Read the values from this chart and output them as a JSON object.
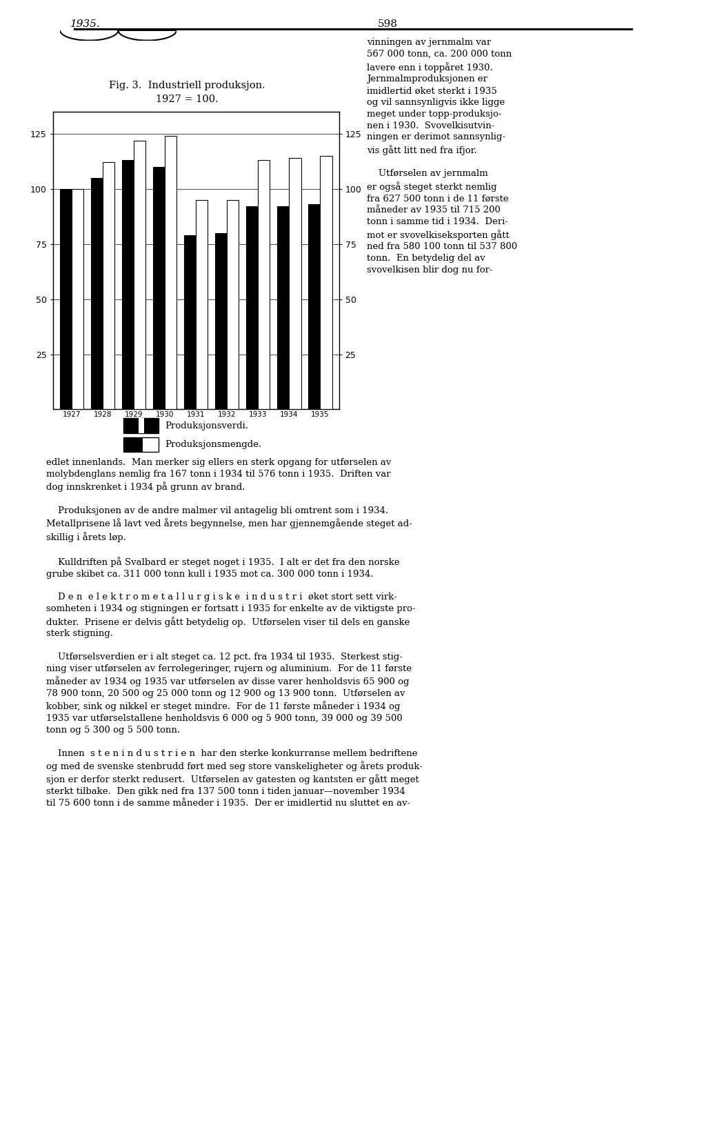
{
  "title_line1": "Fig. 3.  Industriell produksjon.",
  "title_line2": "1927 = 100.",
  "years": [
    "1927",
    "1928",
    "1929",
    "1930",
    "1931",
    "1932",
    "1933",
    "1934",
    "1935"
  ],
  "produksjonsverdi": [
    100,
    105,
    113,
    110,
    79,
    80,
    92,
    92,
    93
  ],
  "produksjonsmengde": [
    100,
    112,
    122,
    124,
    95,
    95,
    113,
    114,
    115
  ],
  "ylim_min": 0,
  "ylim_max": 135,
  "yticks": [
    25,
    50,
    75,
    100,
    125
  ],
  "bar_width": 0.38,
  "black_color": "#000000",
  "white_color": "#ffffff",
  "legend_label_black": "Produksjonsverdi.",
  "legend_label_white": "Produksjonsmengde.",
  "header_year": "1935.",
  "header_page": "598",
  "right_col_text": "vinningen av jernmalm var\n567 000 tonn, ca. 200 000 tonn\nlavere enn i toppåret 1930.\nJernmalmproduksjonen er\nimidlertid øket sterkt i 1935\nog vil sannsynligvis ikke ligge\nmeget under topp-produksjo-\nnen i 1930.  Svovelkisutvin-\nningen er derimot sannsynlig-\nvis gått litt ned fra ifjor.\n\n    Utførselen av jernmalm\ner også steget sterkt nemlig\nfra 627 500 tonn i de 11 første\nmåneder av 1935 til 715 200\ntonn i samme tid i 1934.  Deri-\nmot er svovelkiseksporten gått\nned fra 580 100 tonn til 537 800\ntonn.  En betydelig del av\nsvovelkisen blir dog nu for-",
  "lower_text": "edlet innenlands.  Man merker sig ellers en sterk opgang for utførselen av\nmolybdenglans nemlig fra 167 tonn i 1934 til 576 tonn i 1935.  Driften var\ndog innskrenket i 1934 på grunn av brand.\n\n    Produksjonen av de andre malmer vil antagelig bli omtrent som i 1934.\nMetallprisene lå lavt ved årets begynnelse, men har gjennemgående steget ad-\nskillig i årets løp.\n\n    Kulldriften på Svalbard er steget noget i 1935.  I alt er det fra den norske\ngrube skibet ca. 311 000 tonn kull i 1935 mot ca. 300 000 tonn i 1934.\n\n    D e n  e l e k t r o m e t a l l u r g i s k e  i n d u s t r i  øket stort sett virk-\nsomheten i 1934 og stigningen er fortsatt i 1935 for enkelte av de viktigste pro-\ndukter.  Prisene er delvis gått betydelig op.  Utførselen viser til dels en ganske\nsterk stigning.\n\n    Utførselsverdien er i alt steget ca. 12 pct. fra 1934 til 1935.  Sterkest stig-\nning viser utførselen av ferrolegeringer, rujern og aluminium.  For de 11 første\nmåneder av 1934 og 1935 var utførselen av disse varer henholdsvis 65 900 og\n78 900 tonn, 20 500 og 25 000 tonn og 12 900 og 13 900 tonn.  Utførselen av\nkobber, sink og nikkel er steget mindre.  For de 11 første måneder i 1934 og\n1935 var utførselstallene henholdsvis 6 000 og 5 900 tonn, 39 000 og 39 500\ntonn og 5 300 og 5 500 tonn.\n\n    Innen  s t e n i n d u s t r i e n  har den sterke konkurranse mellem bedriftene\nog med de svenske stenbrudd ført med seg store vanskeligheter og årets produk-\nsjon er derfor sterkt redusert.  Utførselen av gatesten og kantsten er gått meget\nsterkt tilbake.  Den gikk ned fra 137 500 tonn i tiden januar—november 1934\ntil 75 600 tonn i de samme måneder i 1935.  Der er imidlertid nu sluttet en av-",
  "fig_width": 10.24,
  "fig_height": 16.28,
  "dpi": 100
}
